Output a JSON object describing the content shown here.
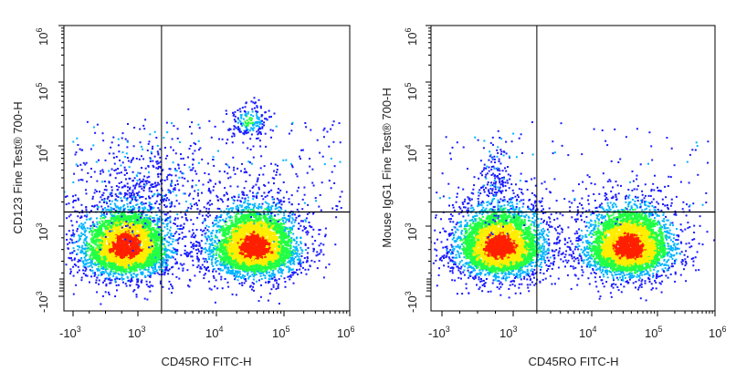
{
  "chart_data": [
    {
      "type": "scatter",
      "subtype": "flow-cytometry-density-plot",
      "title": "",
      "xlabel": "CD45RO FITC-H",
      "ylabel": "CD123 Fine Test® 700-H",
      "x_scale": "biexponential",
      "y_scale": "biexponential",
      "x_ticks": [
        {
          "base": "-10",
          "exp": "3"
        },
        {
          "base": "10",
          "exp": "3"
        },
        {
          "base": "10",
          "exp": "4"
        },
        {
          "base": "10",
          "exp": "5"
        },
        {
          "base": "10",
          "exp": "6"
        }
      ],
      "y_ticks": [
        {
          "base": "-10",
          "exp": "3"
        },
        {
          "base": "10",
          "exp": "3"
        },
        {
          "base": "10",
          "exp": "4"
        },
        {
          "base": "10",
          "exp": "5"
        },
        {
          "base": "10",
          "exp": "6"
        }
      ],
      "quadrant_gate": {
        "x": 2000,
        "y": 1500
      },
      "populations": [
        {
          "name": "",
          "x_center": 600,
          "y_center": 400,
          "density": "high"
        },
        {
          "name": "",
          "x_center": 35000,
          "y_center": 400,
          "density": "high"
        },
        {
          "name": "",
          "x_center": 30000,
          "y_center": 25000,
          "density": "low"
        },
        {
          "name": "",
          "x_center": 1500,
          "y_center": 3000,
          "density": "sparse"
        }
      ],
      "grid": false,
      "legend": "none"
    },
    {
      "type": "scatter",
      "subtype": "flow-cytometry-density-plot",
      "title": "",
      "xlabel": "CD45RO FITC-H",
      "ylabel": "Mouse IgG1 Fine Test® 700-H",
      "x_scale": "biexponential",
      "y_scale": "biexponential",
      "x_ticks": [
        {
          "base": "-10",
          "exp": "3"
        },
        {
          "base": "10",
          "exp": "3"
        },
        {
          "base": "10",
          "exp": "4"
        },
        {
          "base": "10",
          "exp": "5"
        },
        {
          "base": "10",
          "exp": "6"
        }
      ],
      "y_ticks": [
        {
          "base": "-10",
          "exp": "3"
        },
        {
          "base": "10",
          "exp": "3"
        },
        {
          "base": "10",
          "exp": "4"
        },
        {
          "base": "10",
          "exp": "5"
        },
        {
          "base": "10",
          "exp": "6"
        }
      ],
      "quadrant_gate": {
        "x": 2000,
        "y": 1500
      },
      "populations": [
        {
          "name": "",
          "x_center": 600,
          "y_center": 400,
          "density": "high"
        },
        {
          "name": "",
          "x_center": 35000,
          "y_center": 400,
          "density": "high"
        },
        {
          "name": "",
          "x_center": 500,
          "y_center": 4000,
          "density": "sparse"
        }
      ],
      "grid": false,
      "legend": "none"
    }
  ],
  "colors": {
    "low": "#1a1aff",
    "mid_low": "#00b4ff",
    "mid": "#22ff44",
    "mid_high": "#ffee00",
    "high": "#ff2000",
    "axis": "#000000",
    "text": "#222222"
  }
}
